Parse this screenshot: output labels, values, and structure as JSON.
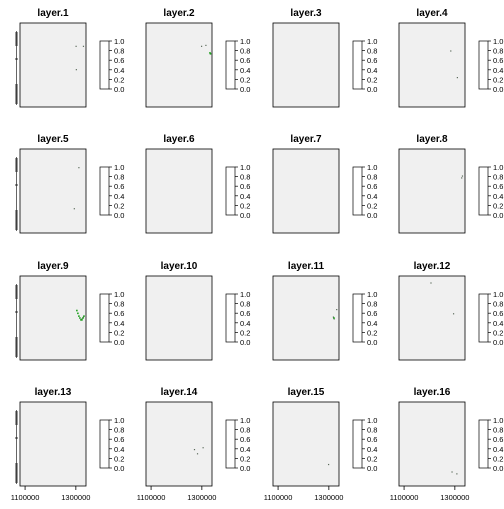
{
  "chart_data": {
    "type": "heatmap",
    "panels": [
      {
        "title": "layer.1",
        "points": [
          [
            1301000,
            4910000
          ],
          [
            1330000,
            4910000
          ],
          [
            1302000,
            4860000
          ]
        ],
        "colored": []
      },
      {
        "title": "layer.2",
        "points": [
          [
            1299000,
            4910000
          ],
          [
            1316000,
            4912000
          ]
        ],
        "colored": [
          [
            1332000,
            4896000
          ],
          [
            1334000,
            4894000
          ]
        ]
      },
      {
        "title": "layer.3",
        "points": [],
        "colored": []
      },
      {
        "title": "layer.4",
        "points": [
          [
            1284000,
            4900000
          ],
          [
            1310000,
            4843000
          ]
        ],
        "colored": []
      },
      {
        "title": "layer.5",
        "points": [
          [
            1312000,
            4920000
          ],
          [
            1294000,
            4832000
          ]
        ],
        "colored": []
      },
      {
        "title": "layer.6",
        "points": [],
        "colored": []
      },
      {
        "title": "layer.7",
        "points": [],
        "colored": []
      },
      {
        "title": "layer.8",
        "points": [
          [
            1330000,
            4902000
          ],
          [
            1327000,
            4898000
          ]
        ],
        "colored": []
      },
      {
        "title": "layer.9",
        "points": [
          [
            1330000,
            4872000
          ],
          [
            1324000,
            4868000
          ]
        ],
        "colored": [
          [
            1304000,
            4886000
          ],
          [
            1308000,
            4880000
          ],
          [
            1312000,
            4874000
          ],
          [
            1316000,
            4870000
          ],
          [
            1320000,
            4866000
          ],
          [
            1324000,
            4866000
          ],
          [
            1328000,
            4870000
          ],
          [
            1332000,
            4874000
          ]
        ]
      },
      {
        "title": "layer.10",
        "points": [],
        "colored": []
      },
      {
        "title": "layer.11",
        "points": [
          [
            1318000,
            4872000
          ],
          [
            1321000,
            4868000
          ],
          [
            1331000,
            4888000
          ]
        ],
        "colored": [
          [
            1320000,
            4870000
          ]
        ]
      },
      {
        "title": "layer.12",
        "points": [
          [
            1206000,
            4945000
          ],
          [
            1295000,
            4879000
          ]
        ],
        "colored": []
      },
      {
        "title": "layer.13",
        "points": [],
        "colored": []
      },
      {
        "title": "layer.14",
        "points": [
          [
            1271000,
            4858000
          ],
          [
            1283000,
            4849000
          ],
          [
            1305000,
            4862000
          ]
        ],
        "colored": []
      },
      {
        "title": "layer.15",
        "points": [
          [
            1299000,
            4826000
          ]
        ],
        "colored": []
      },
      {
        "title": "layer.16",
        "points": [
          [
            1289000,
            4810000
          ],
          [
            1308000,
            4806000
          ]
        ],
        "colored": []
      }
    ],
    "colorkey": {
      "ticks": [
        "0.0",
        "0.2",
        "0.4",
        "0.6",
        "0.8",
        "1.0"
      ],
      "range": [
        0,
        1
      ]
    },
    "x_ticks": [
      "1100000",
      "1300000"
    ],
    "x_tick_values": [
      1100000,
      1300000
    ],
    "xlim": [
      1080000,
      1340000
    ],
    "ylim": [
      4780000,
      4960000
    ],
    "grid": false,
    "layout": "4x4"
  }
}
